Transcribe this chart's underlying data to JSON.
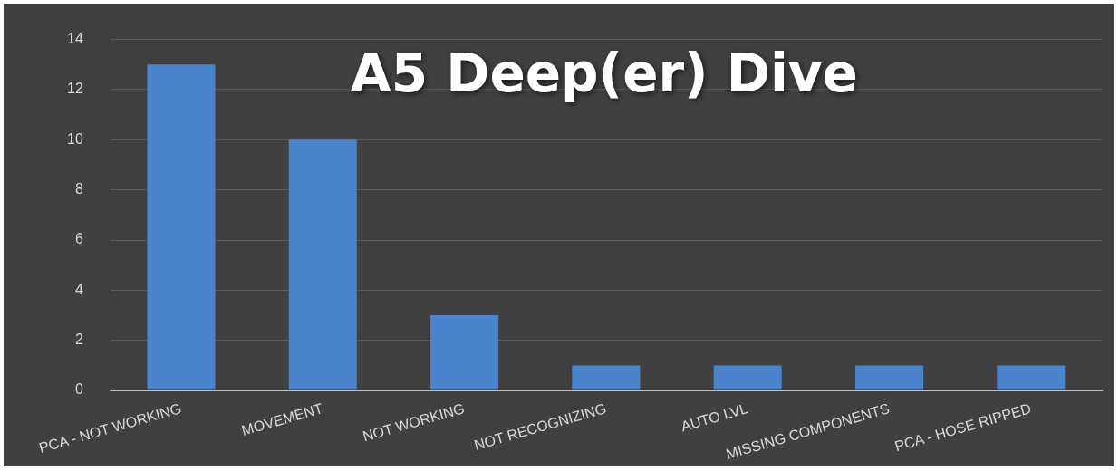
{
  "chart_data": {
    "type": "bar",
    "title": "A5 Deep(er) Dive",
    "categories": [
      "PCA - NOT WORKING",
      "MOVEMENT",
      "NOT WORKING",
      "NOT RECOGNIZING",
      "AUTO LVL",
      "MISSING COMPONENTS",
      "PCA - HOSE RIPPED"
    ],
    "values": [
      13,
      10,
      3,
      1,
      1,
      1,
      1
    ],
    "color": "#4a84cc",
    "ylim": [
      0,
      14
    ],
    "yticks": [
      0,
      2,
      4,
      6,
      8,
      10,
      12,
      14
    ],
    "grid": "y"
  }
}
